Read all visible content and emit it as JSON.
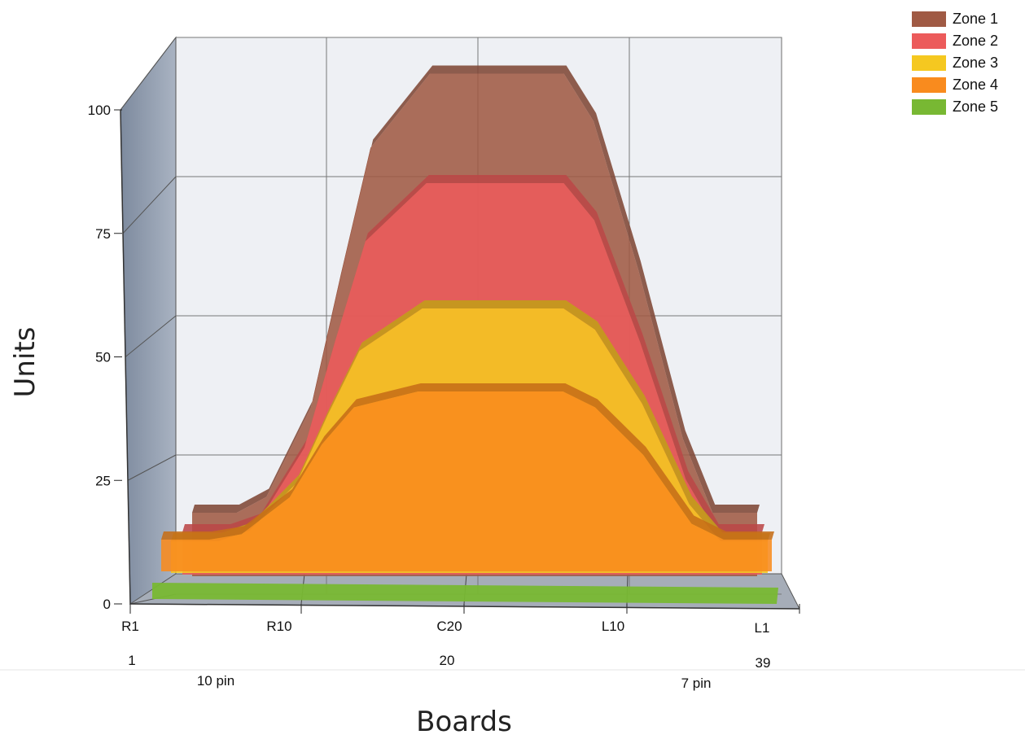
{
  "chart_data": {
    "type": "area",
    "subtype": "3d-stacked-depth",
    "title": "",
    "xlabel": "Boards",
    "ylabel": "Units",
    "ylim": [
      0,
      100
    ],
    "yticks": [
      0,
      25,
      50,
      75,
      100
    ],
    "x_tick_labels": [
      "R1",
      "R10",
      "C20",
      "L10",
      "L1"
    ],
    "x_index_labels": [
      "1",
      "20",
      "39"
    ],
    "x_sub_labels": [
      "10 pin",
      "7 pin"
    ],
    "x": [
      1,
      4,
      6,
      9,
      11,
      13,
      17,
      20,
      23,
      26,
      28,
      31,
      34,
      36,
      39
    ],
    "series": [
      {
        "name": "Zone 1",
        "color": "#a05a44",
        "values": [
          12,
          12,
          15,
          32,
          57,
          81,
          95,
          95,
          95,
          95,
          86,
          58,
          26,
          12,
          12
        ]
      },
      {
        "name": "Zone 2",
        "color": "#ec5b5b",
        "values": [
          8,
          8,
          10,
          24,
          44,
          63,
          74,
          74,
          74,
          74,
          67,
          44,
          18,
          8,
          8
        ]
      },
      {
        "name": "Zone 3",
        "color": "#f5c820",
        "values": [
          6,
          6,
          8,
          17,
          30,
          42,
          50,
          50,
          50,
          50,
          46,
          32,
          13,
          6,
          6
        ]
      },
      {
        "name": "Zone 4",
        "color": "#f98b1e",
        "values": [
          6,
          6,
          7,
          14,
          24,
          31,
          34,
          34,
          34,
          34,
          31,
          22,
          9,
          6,
          6
        ]
      },
      {
        "name": "Zone 5",
        "color": "#78b833",
        "values": [
          2,
          2,
          2,
          2,
          2,
          2,
          2,
          2,
          2,
          2,
          2,
          2,
          2,
          2,
          2
        ]
      }
    ],
    "grid": true,
    "legend_position": "top-right"
  }
}
